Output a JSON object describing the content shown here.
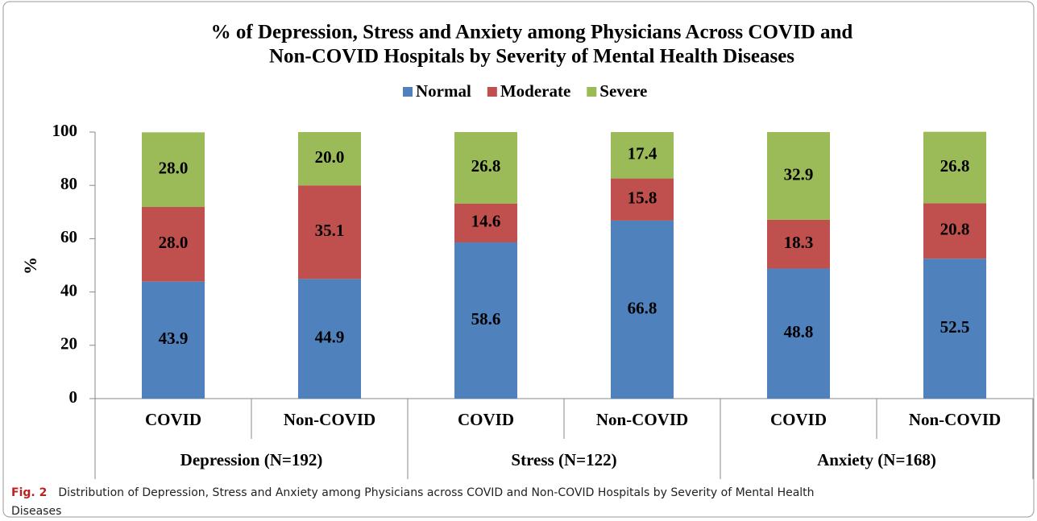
{
  "chart_data": {
    "type": "stacked-bar",
    "title": "% of Depression, Stress and Anxiety among Physicians Across COVID and",
    "title_line2": "Non-COVID Hospitals by Severity of Mental Health Diseases",
    "y_label": "%",
    "categories": [
      "COVID",
      "Non-COVID",
      "COVID",
      "Non-COVID",
      "COVID",
      "Non-COVID"
    ],
    "groups": [
      "Depression (N=192)",
      "Stress (N=122)",
      "Anxiety (N=168)"
    ],
    "series": [
      {
        "name": "Normal",
        "color": "#4f81bd",
        "values": [
          43.9,
          44.9,
          58.6,
          66.8,
          48.8,
          52.5
        ],
        "value_labels": [
          "43.9",
          "44.9",
          "58.6",
          "66.8",
          "48.8",
          "52.5"
        ]
      },
      {
        "name": "Moderate",
        "color": "#c0504d",
        "values": [
          28.0,
          35.1,
          14.6,
          15.8,
          18.3,
          20.8
        ],
        "value_labels": [
          "28.0",
          "35.1",
          "14.6",
          "15.8",
          "18.3",
          "20.8"
        ]
      },
      {
        "name": "Severe",
        "color": "#9bbb59",
        "values": [
          28.0,
          20.0,
          26.8,
          17.4,
          32.9,
          26.8
        ],
        "value_labels": [
          "28.0",
          "20.0",
          "26.8",
          "17.4",
          "32.9",
          "26.8"
        ]
      }
    ],
    "ylim": [
      0,
      100
    ],
    "yticks": [
      0,
      20,
      40,
      60,
      80,
      100
    ]
  },
  "caption": {
    "label": "Fig. 2",
    "text": "Distribution of Depression, Stress and Anxiety among Physicians across COVID and Non-COVID Hospitals by Severity of Mental Health",
    "text_line2": "Diseases"
  }
}
